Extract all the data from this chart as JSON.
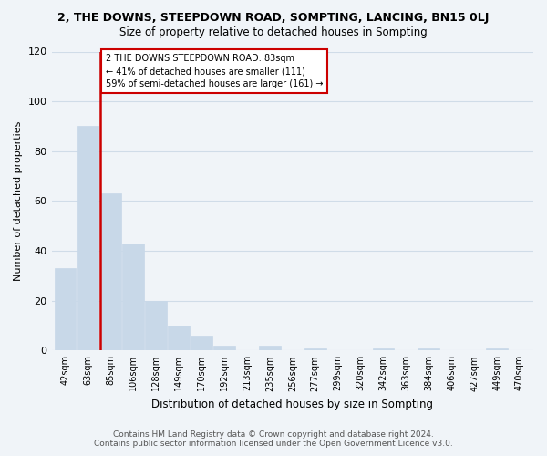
{
  "title": "2, THE DOWNS, STEEPDOWN ROAD, SOMPTING, LANCING, BN15 0LJ",
  "subtitle": "Size of property relative to detached houses in Sompting",
  "xlabel": "Distribution of detached houses by size in Sompting",
  "ylabel": "Number of detached properties",
  "bar_labels": [
    "42sqm",
    "63sqm",
    "85sqm",
    "106sqm",
    "128sqm",
    "149sqm",
    "170sqm",
    "192sqm",
    "213sqm",
    "235sqm",
    "256sqm",
    "277sqm",
    "299sqm",
    "320sqm",
    "342sqm",
    "363sqm",
    "384sqm",
    "406sqm",
    "427sqm",
    "449sqm",
    "470sqm"
  ],
  "bar_values": [
    33,
    90,
    63,
    43,
    20,
    10,
    6,
    2,
    0,
    2,
    0,
    1,
    0,
    0,
    1,
    0,
    1,
    0,
    0,
    1,
    0
  ],
  "bar_color": "#c8d8e8",
  "highlight_bar_index": 2,
  "highlight_color": "#cc0000",
  "annotation_lines": [
    "2 THE DOWNS STEEPDOWN ROAD: 83sqm",
    "← 41% of detached houses are smaller (111)",
    "59% of semi-detached houses are larger (161) →"
  ],
  "ylim": [
    0,
    120
  ],
  "yticks": [
    0,
    20,
    40,
    60,
    80,
    100,
    120
  ],
  "grid_color": "#d0dce8",
  "footer_line1": "Contains HM Land Registry data © Crown copyright and database right 2024.",
  "footer_line2": "Contains public sector information licensed under the Open Government Licence v3.0.",
  "background_color": "#f0f4f8"
}
